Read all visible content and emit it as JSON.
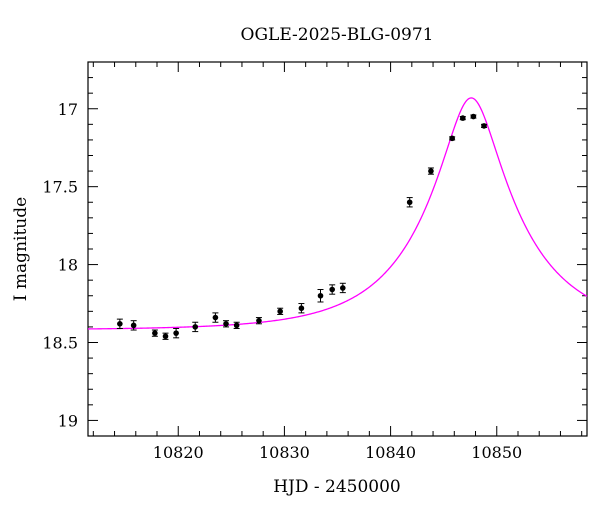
{
  "chart_data": {
    "type": "scatter",
    "title": "OGLE-2025-BLG-0971",
    "xlabel": "HJD - 2450000",
    "ylabel": "I magnitude",
    "xlim": [
      10811.5,
      10858.5
    ],
    "ylim": [
      19.1,
      16.7
    ],
    "y_inverted": true,
    "x_ticks": [
      10820,
      10830,
      10840,
      10850
    ],
    "y_ticks": [
      17,
      17.5,
      18,
      18.5,
      19
    ],
    "y_tick_labels": [
      "17",
      "17.5",
      "18",
      "18.5",
      "19"
    ],
    "grid": false,
    "colors": {
      "points": "#000000",
      "model": "#ff00ff"
    },
    "series": [
      {
        "kind": "points",
        "x": [
          10814.5,
          10815.8,
          10817.8,
          10818.8,
          10819.8,
          10821.6,
          10823.5,
          10824.5,
          10825.5,
          10827.6,
          10829.6,
          10831.6,
          10833.4,
          10834.5,
          10835.5,
          10841.8,
          10843.8,
          10845.8,
          10846.8,
          10847.8,
          10848.8
        ],
        "y": [
          18.38,
          18.39,
          18.44,
          18.46,
          18.44,
          18.4,
          18.34,
          18.38,
          18.39,
          18.36,
          18.3,
          18.28,
          18.2,
          18.16,
          18.15,
          17.6,
          17.4,
          17.19,
          17.06,
          17.05,
          17.11
        ],
        "err": [
          0.03,
          0.03,
          0.02,
          0.02,
          0.03,
          0.03,
          0.03,
          0.02,
          0.02,
          0.02,
          0.02,
          0.03,
          0.04,
          0.03,
          0.03,
          0.03,
          0.02,
          0.01,
          0.01,
          0.01,
          0.01
        ]
      },
      {
        "kind": "model",
        "t0": 10847.6,
        "u0": 0.26,
        "tE": 9.15,
        "I_base": 18.42,
        "x_range": [
          10811.5,
          10858.5
        ]
      }
    ]
  }
}
